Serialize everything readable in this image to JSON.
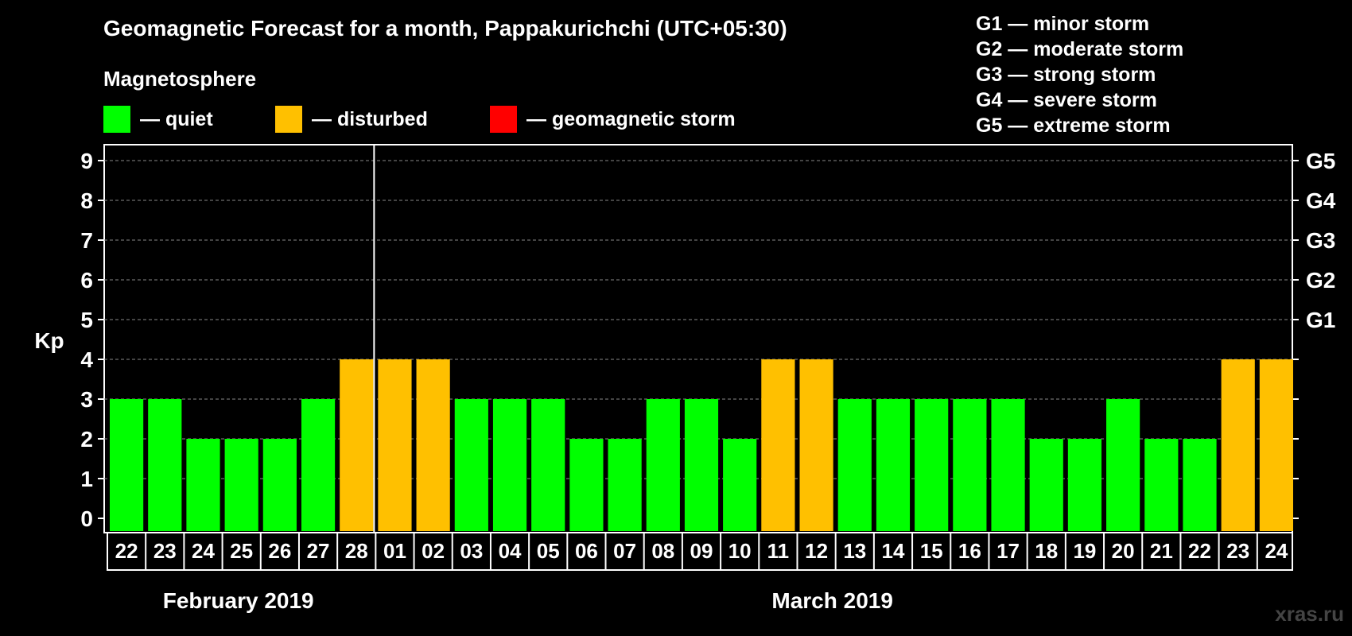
{
  "chart_data": {
    "type": "bar",
    "title": "Geomagnetic Forecast for a month, Pappakurichchi (UTC+05:30)",
    "subtitle": "Magnetosphere",
    "ylabel": "Kp",
    "ylim": [
      0,
      9
    ],
    "y_ticks": [
      "0",
      "1",
      "2",
      "3",
      "4",
      "5",
      "6",
      "7",
      "8",
      "9"
    ],
    "right_axis_labels": [
      {
        "kp": 5,
        "label": "G1"
      },
      {
        "kp": 6,
        "label": "G2"
      },
      {
        "kp": 7,
        "label": "G3"
      },
      {
        "kp": 8,
        "label": "G4"
      },
      {
        "kp": 9,
        "label": "G5"
      }
    ],
    "categories": [
      "22",
      "23",
      "24",
      "25",
      "26",
      "27",
      "28",
      "01",
      "02",
      "03",
      "04",
      "05",
      "06",
      "07",
      "08",
      "09",
      "10",
      "11",
      "12",
      "13",
      "14",
      "15",
      "16",
      "17",
      "18",
      "19",
      "20",
      "21",
      "22",
      "23",
      "24"
    ],
    "values": [
      3,
      3,
      2,
      2,
      2,
      3,
      4,
      4,
      4,
      3,
      3,
      3,
      2,
      2,
      3,
      3,
      2,
      4,
      4,
      3,
      3,
      3,
      3,
      3,
      2,
      2,
      3,
      2,
      2,
      4,
      4
    ],
    "months": [
      {
        "label": "February 2019",
        "start_index": 0,
        "end_index": 6
      },
      {
        "label": "March 2019",
        "start_index": 7,
        "end_index": 30
      }
    ],
    "legend": [
      {
        "label": "— quiet",
        "color": "#00ff00"
      },
      {
        "label": "— disturbed",
        "color": "#ffc000"
      },
      {
        "label": "— geomagnetic storm",
        "color": "#ff0000"
      }
    ],
    "storm_scale": [
      "G1 — minor storm",
      "G2 — moderate storm",
      "G3 — strong storm",
      "G4 — severe storm",
      "G5 — extreme storm"
    ],
    "colors": {
      "quiet": "#00ff00",
      "disturbed": "#ffc000",
      "storm": "#ff0000"
    },
    "grid": true
  },
  "watermark": "xras.ru"
}
